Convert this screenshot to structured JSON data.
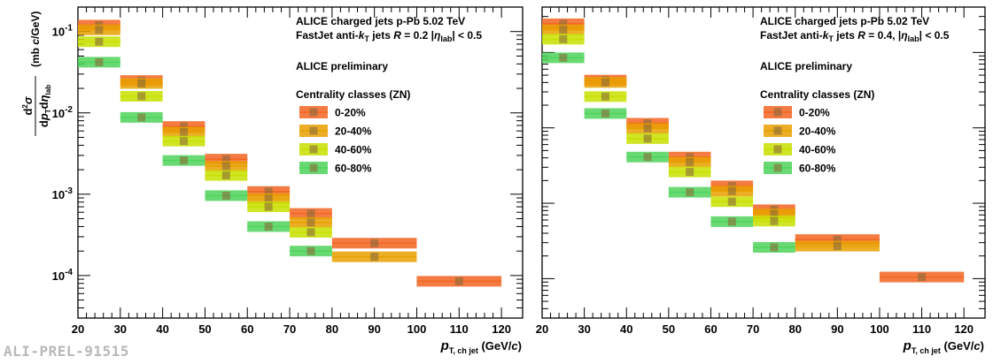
{
  "chart_data": [
    {
      "type": "bar",
      "panel": "left",
      "title_lines": [
        "ALICE charged jets p-Pb 5.02 TeV",
        "FastJet anti-kT jets  R = 0.2 |ηlab| < 0.5"
      ],
      "preliminary": "ALICE preliminary",
      "legend_title": "Centrality classes (ZN)",
      "xlabel": "p T, ch jet (GeV/c)",
      "ylabel": "d2σ / dpT dηlab (mb c/GeV)",
      "xlim": [
        20,
        125
      ],
      "ylim": [
        3e-05,
        0.2
      ],
      "yscale": "log",
      "x_ticks": [
        "20",
        "30",
        "40",
        "50",
        "60",
        "70",
        "80",
        "90",
        "100",
        "110",
        "120"
      ],
      "y_ticks": [
        "10-4",
        "10-3",
        "10-2",
        "10-1"
      ],
      "series": [
        {
          "name": "0-20%",
          "color": "#f26522",
          "points": [
            {
              "x": 25,
              "lo": 20,
              "hi": 30,
              "y": 0.12
            },
            {
              "x": 35,
              "lo": 30,
              "hi": 40,
              "y": 0.025
            },
            {
              "x": 45,
              "lo": 40,
              "hi": 50,
              "y": 0.0068
            },
            {
              "x": 55,
              "lo": 50,
              "hi": 60,
              "y": 0.0027
            },
            {
              "x": 65,
              "lo": 60,
              "hi": 70,
              "y": 0.00108
            },
            {
              "x": 75,
              "lo": 70,
              "hi": 80,
              "y": 0.00058
            },
            {
              "x": 90,
              "lo": 80,
              "hi": 100,
              "y": 0.00025
            },
            {
              "x": 110,
              "lo": 100,
              "hi": 120,
              "y": 8.5e-05
            }
          ]
        },
        {
          "name": "20-40%",
          "color": "#e8a000",
          "points": [
            {
              "x": 25,
              "lo": 20,
              "hi": 30,
              "y": 0.105
            },
            {
              "x": 35,
              "lo": 30,
              "hi": 40,
              "y": 0.023
            },
            {
              "x": 45,
              "lo": 40,
              "hi": 50,
              "y": 0.0058
            },
            {
              "x": 55,
              "lo": 50,
              "hi": 60,
              "y": 0.0022
            },
            {
              "x": 65,
              "lo": 60,
              "hi": 70,
              "y": 0.00088
            },
            {
              "x": 75,
              "lo": 70,
              "hi": 80,
              "y": 0.00045
            },
            {
              "x": 90,
              "lo": 80,
              "hi": 100,
              "y": 0.00017
            }
          ]
        },
        {
          "name": "40-60%",
          "color": "#c8e000",
          "points": [
            {
              "x": 25,
              "lo": 20,
              "hi": 30,
              "y": 0.075
            },
            {
              "x": 35,
              "lo": 30,
              "hi": 40,
              "y": 0.016
            },
            {
              "x": 45,
              "lo": 40,
              "hi": 50,
              "y": 0.0045
            },
            {
              "x": 55,
              "lo": 50,
              "hi": 60,
              "y": 0.0017
            },
            {
              "x": 65,
              "lo": 60,
              "hi": 70,
              "y": 0.0007
            },
            {
              "x": 75,
              "lo": 70,
              "hi": 80,
              "y": 0.00034
            }
          ]
        },
        {
          "name": "60-80%",
          "color": "#4fd45a",
          "points": [
            {
              "x": 25,
              "lo": 20,
              "hi": 30,
              "y": 0.042
            },
            {
              "x": 35,
              "lo": 30,
              "hi": 40,
              "y": 0.0088
            },
            {
              "x": 45,
              "lo": 40,
              "hi": 50,
              "y": 0.0026
            },
            {
              "x": 55,
              "lo": 50,
              "hi": 60,
              "y": 0.00096
            },
            {
              "x": 65,
              "lo": 60,
              "hi": 70,
              "y": 0.0004
            },
            {
              "x": 75,
              "lo": 70,
              "hi": 80,
              "y": 0.0002
            }
          ]
        }
      ]
    },
    {
      "type": "bar",
      "panel": "right",
      "title_lines": [
        "ALICE charged jets p-Pb 5.02 TeV",
        "FastJet anti-kT jets  R = 0.4, |ηlab| < 0.5"
      ],
      "preliminary": "ALICE preliminary",
      "legend_title": "Centrality classes (ZN)",
      "xlabel": "p T, ch jet (GeV/c)",
      "xlim": [
        20,
        125
      ],
      "ylim": [
        3e-05,
        0.4
      ],
      "yscale": "log",
      "x_ticks": [
        "20",
        "30",
        "40",
        "50",
        "60",
        "70",
        "80",
        "90",
        "100",
        "110",
        "120"
      ],
      "series": [
        {
          "name": "0-20%",
          "color": "#f26522",
          "points": [
            {
              "x": 25,
              "lo": 20,
              "hi": 30,
              "y": 0.24
            },
            {
              "x": 35,
              "lo": 30,
              "hi": 40,
              "y": 0.043
            },
            {
              "x": 45,
              "lo": 40,
              "hi": 50,
              "y": 0.0115
            },
            {
              "x": 55,
              "lo": 50,
              "hi": 60,
              "y": 0.0041
            },
            {
              "x": 65,
              "lo": 60,
              "hi": 70,
              "y": 0.0017
            },
            {
              "x": 75,
              "lo": 70,
              "hi": 80,
              "y": 0.00082
            },
            {
              "x": 90,
              "lo": 80,
              "hi": 100,
              "y": 0.00033
            },
            {
              "x": 110,
              "lo": 100,
              "hi": 120,
              "y": 0.000105
            }
          ]
        },
        {
          "name": "20-40%",
          "color": "#e8a000",
          "points": [
            {
              "x": 25,
              "lo": 20,
              "hi": 30,
              "y": 0.2
            },
            {
              "x": 35,
              "lo": 30,
              "hi": 40,
              "y": 0.04
            },
            {
              "x": 45,
              "lo": 40,
              "hi": 50,
              "y": 0.0098
            },
            {
              "x": 55,
              "lo": 50,
              "hi": 60,
              "y": 0.0035
            },
            {
              "x": 65,
              "lo": 60,
              "hi": 70,
              "y": 0.00145
            },
            {
              "x": 75,
              "lo": 70,
              "hi": 80,
              "y": 0.00072
            },
            {
              "x": 90,
              "lo": 80,
              "hi": 100,
              "y": 0.00027
            }
          ]
        },
        {
          "name": "40-60%",
          "color": "#c8e000",
          "points": [
            {
              "x": 25,
              "lo": 20,
              "hi": 30,
              "y": 0.15
            },
            {
              "x": 35,
              "lo": 30,
              "hi": 40,
              "y": 0.026
            },
            {
              "x": 45,
              "lo": 40,
              "hi": 50,
              "y": 0.0072
            },
            {
              "x": 55,
              "lo": 50,
              "hi": 60,
              "y": 0.0026
            },
            {
              "x": 65,
              "lo": 60,
              "hi": 70,
              "y": 0.00105
            },
            {
              "x": 75,
              "lo": 70,
              "hi": 80,
              "y": 0.00058
            }
          ]
        },
        {
          "name": "60-80%",
          "color": "#4fd45a",
          "points": [
            {
              "x": 25,
              "lo": 20,
              "hi": 30,
              "y": 0.085
            },
            {
              "x": 35,
              "lo": 30,
              "hi": 40,
              "y": 0.0155
            },
            {
              "x": 45,
              "lo": 40,
              "hi": 50,
              "y": 0.0041
            },
            {
              "x": 55,
              "lo": 50,
              "hi": 60,
              "y": 0.0014
            },
            {
              "x": 65,
              "lo": 60,
              "hi": 70,
              "y": 0.00057
            },
            {
              "x": 75,
              "lo": 70,
              "hi": 80,
              "y": 0.00026
            }
          ]
        }
      ]
    }
  ],
  "watermark": "ALI-PREL-91515"
}
